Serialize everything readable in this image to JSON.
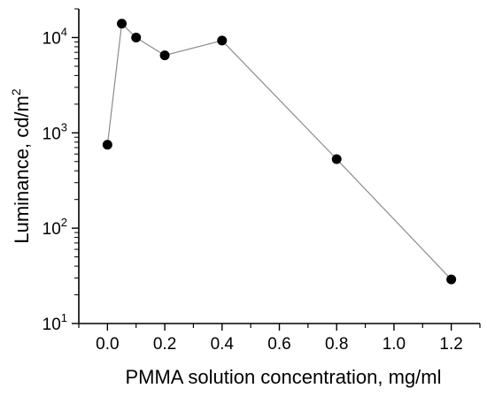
{
  "chart_data": {
    "type": "scatter",
    "title": "",
    "xlabel": "PMMA solution concentration, mg/ml",
    "ylabel": {
      "base": "Luminance, cd/m",
      "sup": "2"
    },
    "xlim": [
      -0.1,
      1.3
    ],
    "ylim": [
      10,
      20000
    ],
    "yscale": "log",
    "grid": false,
    "legend": "none",
    "x_ticks": [
      {
        "value": 0.0,
        "label": "0.0"
      },
      {
        "value": 0.2,
        "label": "0.2"
      },
      {
        "value": 0.4,
        "label": "0.4"
      },
      {
        "value": 0.6,
        "label": "0.6"
      },
      {
        "value": 0.8,
        "label": "0.8"
      },
      {
        "value": 1.0,
        "label": "1.0"
      },
      {
        "value": 1.2,
        "label": "1.2"
      }
    ],
    "y_ticks": [
      {
        "value": 10,
        "base": "10",
        "exp": "1"
      },
      {
        "value": 100,
        "base": "10",
        "exp": "2"
      },
      {
        "value": 1000,
        "base": "10",
        "exp": "3"
      },
      {
        "value": 10000,
        "base": "10",
        "exp": "4"
      }
    ],
    "series": [
      {
        "marker": "circle",
        "color": "#000000",
        "line_color": "#8c8c8c",
        "points": [
          {
            "x": 0.0,
            "y": 750
          },
          {
            "x": 0.05,
            "y": 14000
          },
          {
            "x": 0.1,
            "y": 10000
          },
          {
            "x": 0.2,
            "y": 6500
          },
          {
            "x": 0.4,
            "y": 9300
          },
          {
            "x": 0.8,
            "y": 530
          },
          {
            "x": 1.2,
            "y": 29
          }
        ]
      }
    ]
  }
}
